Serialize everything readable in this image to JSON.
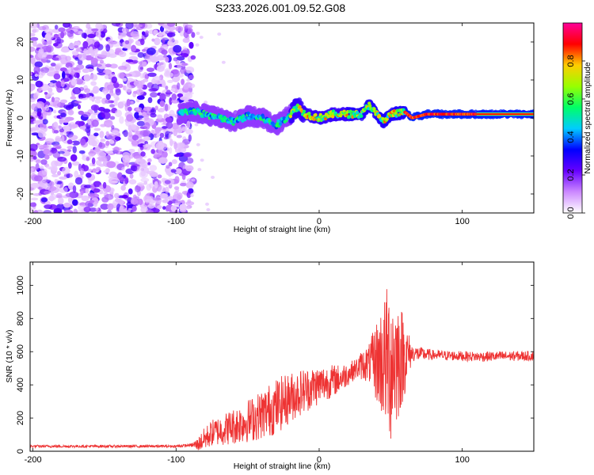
{
  "chart_data": [
    {
      "type": "heatmap",
      "title": "S233.2026.001.09.52.G08",
      "xlabel": "Height of straight line (km)",
      "ylabel": "Frequency (Hz)",
      "xlim": [
        -202,
        150
      ],
      "ylim": [
        -25,
        25
      ],
      "xticks": [
        -200,
        -100,
        0,
        100
      ],
      "yticks": [
        -20,
        -10,
        0,
        10,
        20
      ],
      "colorbar": {
        "label": "Normalized spectral amplitude",
        "range": [
          0,
          1
        ],
        "ticks": [
          "0.0",
          "0.2",
          "0.4",
          "0.6",
          "0.8"
        ],
        "colors": [
          "#ffffff",
          "#cc88ff",
          "#6600ff",
          "#0000ff",
          "#00ccff",
          "#00ff66",
          "#99ff00",
          "#ffcc00",
          "#ff0000",
          "#ff0099"
        ]
      },
      "noise_region": {
        "x": [
          -202,
          -88
        ],
        "y": [
          -25,
          25
        ],
        "amplitude": [
          0.05,
          0.2
        ]
      },
      "ridge": [
        {
          "x": -98,
          "y": 1.0
        },
        {
          "x": -90,
          "y": 2.0
        },
        {
          "x": -80,
          "y": 1.0
        },
        {
          "x": -70,
          "y": 0.0
        },
        {
          "x": -60,
          "y": -1.0
        },
        {
          "x": -50,
          "y": 0.5
        },
        {
          "x": -40,
          "y": 0.0
        },
        {
          "x": -30,
          "y": -2.0
        },
        {
          "x": -20,
          "y": 1.0
        },
        {
          "x": -15,
          "y": 3.0
        },
        {
          "x": -10,
          "y": 1.0
        },
        {
          "x": 0,
          "y": 0.0
        },
        {
          "x": 10,
          "y": 1.0
        },
        {
          "x": 20,
          "y": 1.0
        },
        {
          "x": 30,
          "y": 1.0
        },
        {
          "x": 35,
          "y": 3.5
        },
        {
          "x": 40,
          "y": 1.0
        },
        {
          "x": 45,
          "y": -1.0
        },
        {
          "x": 50,
          "y": 1.0
        },
        {
          "x": 60,
          "y": 1.5
        },
        {
          "x": 65,
          "y": 0.0
        },
        {
          "x": 75,
          "y": 1.0
        },
        {
          "x": 90,
          "y": 1.0
        },
        {
          "x": 110,
          "y": 1.0
        },
        {
          "x": 150,
          "y": 1.0
        }
      ]
    },
    {
      "type": "line",
      "xlabel": "Height of straight line (km)",
      "ylabel": "SNR (10 * v/v)",
      "xlim": [
        -202,
        150
      ],
      "ylim": [
        0,
        1140
      ],
      "xticks": [
        -200,
        -100,
        0,
        100
      ],
      "yticks": [
        0,
        200,
        400,
        600,
        800,
        1000
      ],
      "color": "#ee3333",
      "series": {
        "name": "SNR",
        "trend": [
          {
            "x": -202,
            "y": 30
          },
          {
            "x": -100,
            "y": 30
          },
          {
            "x": -85,
            "y": 40
          },
          {
            "x": -75,
            "y": 110
          },
          {
            "x": -60,
            "y": 150
          },
          {
            "x": -45,
            "y": 200
          },
          {
            "x": -30,
            "y": 270
          },
          {
            "x": -15,
            "y": 350
          },
          {
            "x": 0,
            "y": 400
          },
          {
            "x": 15,
            "y": 440
          },
          {
            "x": 30,
            "y": 520
          },
          {
            "x": 40,
            "y": 540
          },
          {
            "x": 55,
            "y": 560
          },
          {
            "x": 65,
            "y": 590
          },
          {
            "x": 80,
            "y": 580
          },
          {
            "x": 110,
            "y": 570
          },
          {
            "x": 150,
            "y": 575
          }
        ],
        "amplitude": [
          {
            "x": -202,
            "y": 8
          },
          {
            "x": -90,
            "y": 8
          },
          {
            "x": -80,
            "y": 70
          },
          {
            "x": -30,
            "y": 170
          },
          {
            "x": 0,
            "y": 120
          },
          {
            "x": 25,
            "y": 60
          },
          {
            "x": 35,
            "y": 120
          },
          {
            "x": 42,
            "y": 300
          },
          {
            "x": 50,
            "y": 520
          },
          {
            "x": 58,
            "y": 300
          },
          {
            "x": 65,
            "y": 50
          },
          {
            "x": 80,
            "y": 30
          },
          {
            "x": 150,
            "y": 30
          }
        ]
      }
    }
  ]
}
